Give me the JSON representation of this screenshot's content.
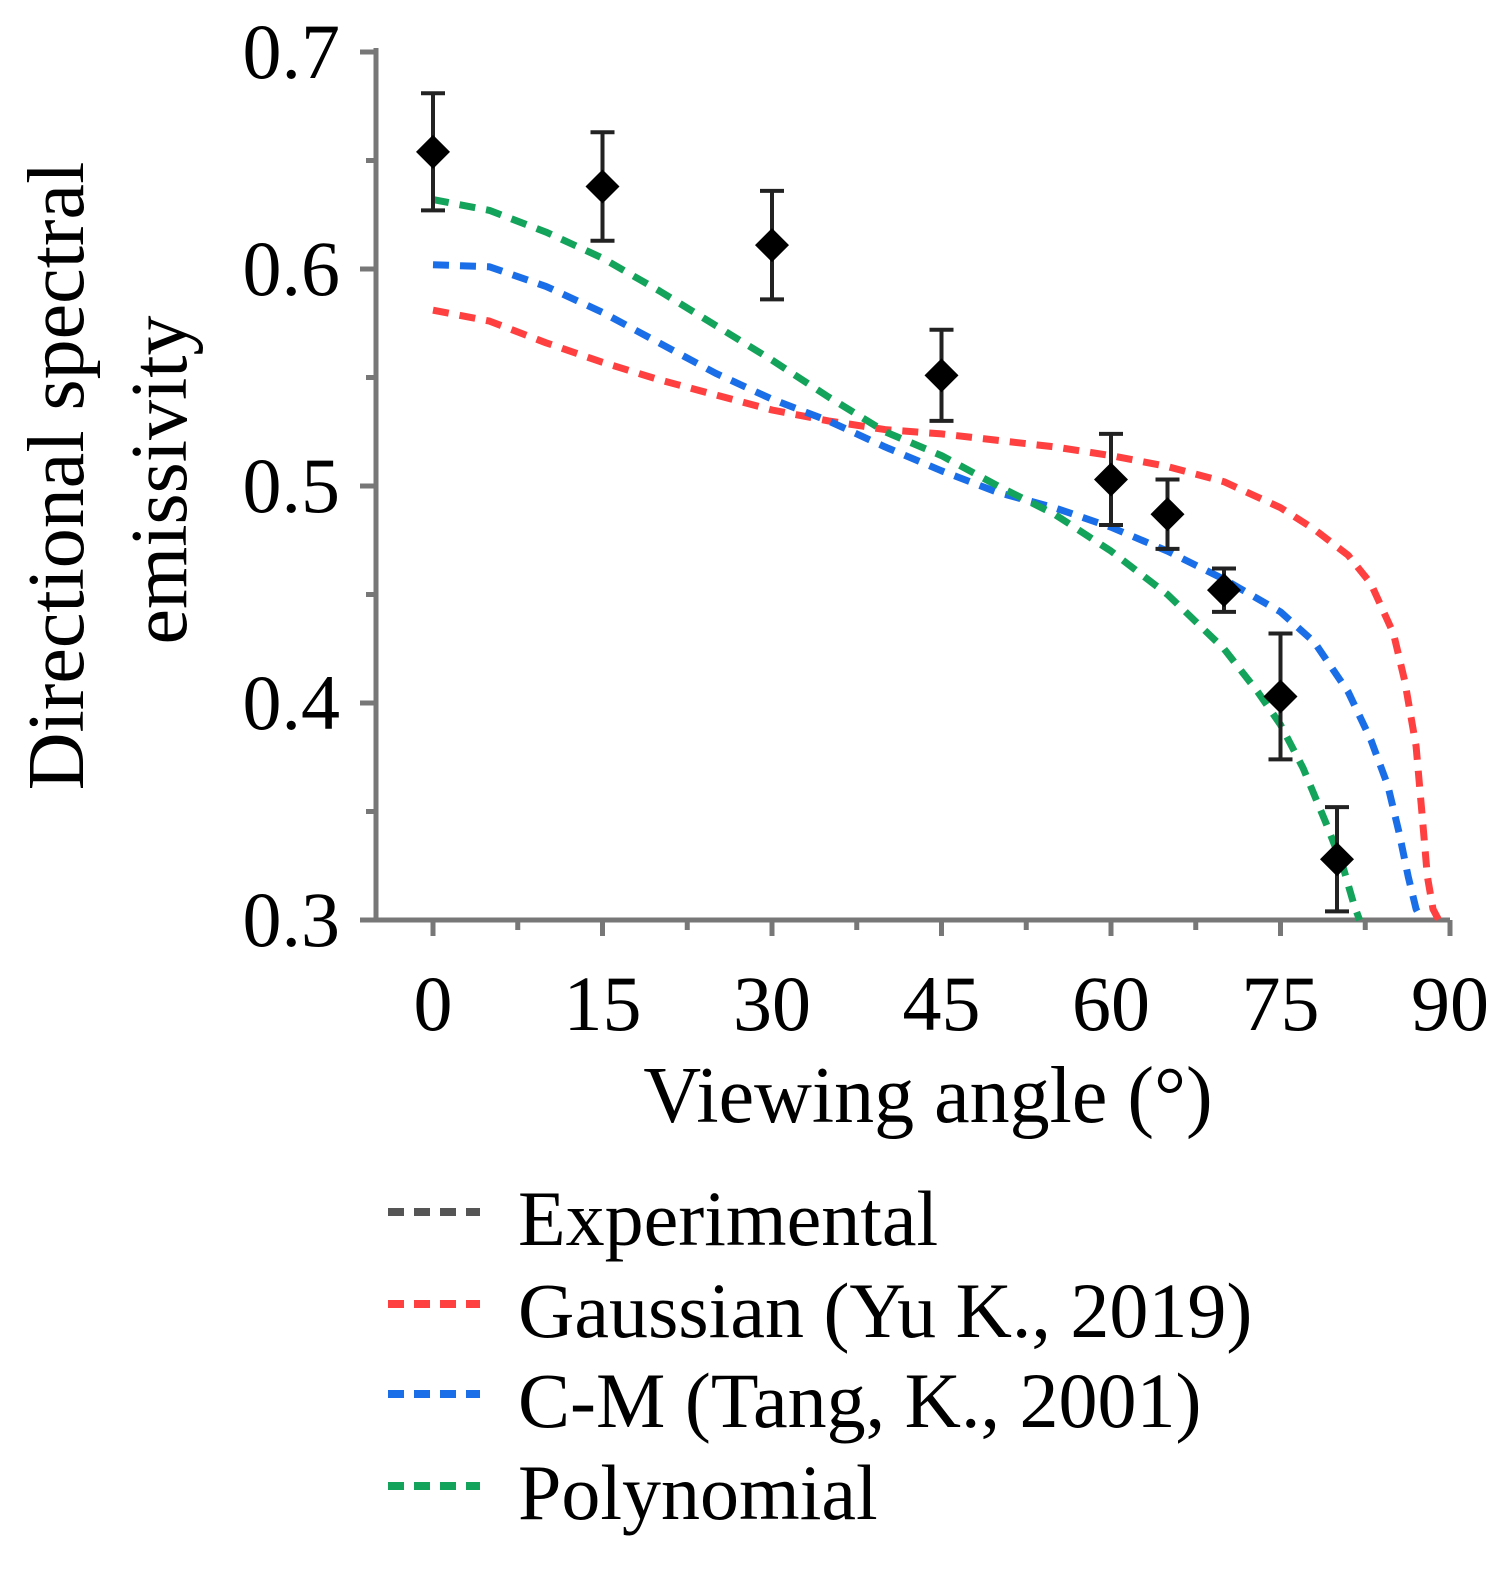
{
  "chart_data": {
    "type": "scatter",
    "title": "",
    "xlabel": "Viewing angle (°)",
    "ylabel": [
      "Directional spectral",
      "emissivity"
    ],
    "xlim": [
      -5,
      90
    ],
    "ylim": [
      0.3,
      0.7
    ],
    "xticks": [
      0,
      15,
      30,
      45,
      60,
      75,
      90
    ],
    "xtick_labels": [
      "0",
      "15",
      "30",
      "45",
      "60",
      "75",
      "90"
    ],
    "yticks": [
      0.3,
      0.4,
      0.5,
      0.6,
      0.7
    ],
    "ytick_labels": [
      "0.3",
      "0.4",
      "0.5",
      "0.6",
      "0.7"
    ],
    "grid": false,
    "legend_position": "bottom",
    "series": [
      {
        "name": "Experimental",
        "color": "#555555",
        "style": "markers-with-errorbars",
        "x": [
          0,
          15,
          30,
          45,
          60,
          65,
          70,
          75,
          80
        ],
        "y": [
          0.654,
          0.638,
          0.611,
          0.551,
          0.503,
          0.487,
          0.452,
          0.403,
          0.328
        ],
        "yerr": [
          0.027,
          0.025,
          0.025,
          0.021,
          0.021,
          0.016,
          0.01,
          0.029,
          0.024
        ]
      },
      {
        "name": "Gaussian (Yu K., 2019)",
        "color": "#ff4040",
        "style": "dashed",
        "x": [
          0,
          5,
          10,
          15,
          20,
          25,
          30,
          35,
          40,
          45,
          50,
          55,
          60,
          65,
          70,
          75,
          78,
          81,
          83,
          85,
          86,
          87,
          87.5,
          88,
          88.5,
          89
        ],
        "y": [
          0.581,
          0.576,
          0.566,
          0.557,
          0.549,
          0.542,
          0.535,
          0.53,
          0.526,
          0.524,
          0.521,
          0.518,
          0.514,
          0.509,
          0.502,
          0.49,
          0.48,
          0.468,
          0.455,
          0.432,
          0.41,
          0.38,
          0.35,
          0.32,
          0.305,
          0.3
        ]
      },
      {
        "name": "C-M (Tang, K., 2001)",
        "color": "#1a6ee8",
        "style": "dashed",
        "x": [
          0,
          5,
          10,
          15,
          20,
          25,
          30,
          35,
          40,
          45,
          50,
          55,
          60,
          65,
          70,
          75,
          78,
          81,
          83,
          84.5,
          85.5,
          86.3,
          87,
          87.5
        ],
        "y": [
          0.602,
          0.601,
          0.592,
          0.58,
          0.566,
          0.552,
          0.54,
          0.53,
          0.518,
          0.507,
          0.497,
          0.49,
          0.481,
          0.47,
          0.457,
          0.442,
          0.428,
          0.405,
          0.383,
          0.362,
          0.34,
          0.32,
          0.305,
          0.3
        ]
      },
      {
        "name": "Polynomial",
        "color": "#13a35a",
        "style": "dashed",
        "x": [
          0,
          5,
          10,
          15,
          20,
          25,
          30,
          35,
          40,
          45,
          50,
          55,
          60,
          65,
          70,
          73,
          75,
          77,
          79,
          80.5,
          81.5,
          82
        ],
        "y": [
          0.632,
          0.627,
          0.617,
          0.605,
          0.59,
          0.574,
          0.558,
          0.541,
          0.525,
          0.514,
          0.5,
          0.487,
          0.47,
          0.45,
          0.425,
          0.405,
          0.39,
          0.37,
          0.345,
          0.325,
          0.307,
          0.3
        ]
      }
    ]
  }
}
